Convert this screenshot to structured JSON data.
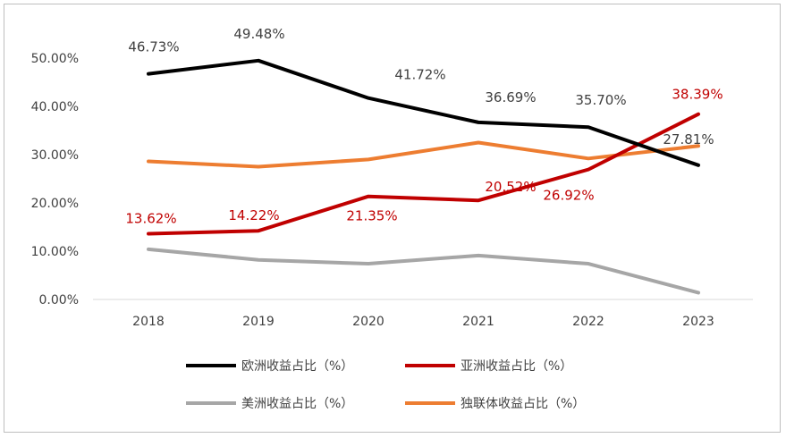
{
  "chart_data": {
    "type": "line",
    "title": "",
    "xlabel": "",
    "ylabel": "",
    "categories": [
      "2018",
      "2019",
      "2020",
      "2021",
      "2022",
      "2023"
    ],
    "ylim": [
      0,
      50
    ],
    "yticks": [
      "0.00%",
      "10.00%",
      "20.00%",
      "30.00%",
      "40.00%",
      "50.00%"
    ],
    "grid": false,
    "series": [
      {
        "name": "欧洲收益占比（%）",
        "color": "#000000",
        "values": [
          46.73,
          49.48,
          41.72,
          36.69,
          35.7,
          27.81
        ],
        "labels": [
          "46.73%",
          "49.48%",
          "41.72%",
          "36.69%",
          "35.70%",
          "27.81%"
        ],
        "label_color": "#404040"
      },
      {
        "name": "亚洲收益占比（%）",
        "color": "#c00000",
        "values": [
          13.62,
          14.22,
          21.35,
          20.52,
          26.92,
          38.39
        ],
        "labels": [
          "13.62%",
          "14.22%",
          "21.35%",
          "20.52%",
          "26.92%",
          "38.39%"
        ],
        "label_color": "#c00000"
      },
      {
        "name": "美洲收益占比（%）",
        "color": "#a6a6a6",
        "values": [
          10.4,
          8.2,
          7.4,
          9.1,
          7.4,
          1.4
        ],
        "labels": null,
        "label_color": null
      },
      {
        "name": "独联体收益占比（%）",
        "color": "#ed7d31",
        "values": [
          28.6,
          27.5,
          29.0,
          32.5,
          29.2,
          31.8
        ],
        "labels": null,
        "label_color": null
      }
    ],
    "legend_position": "bottom"
  }
}
